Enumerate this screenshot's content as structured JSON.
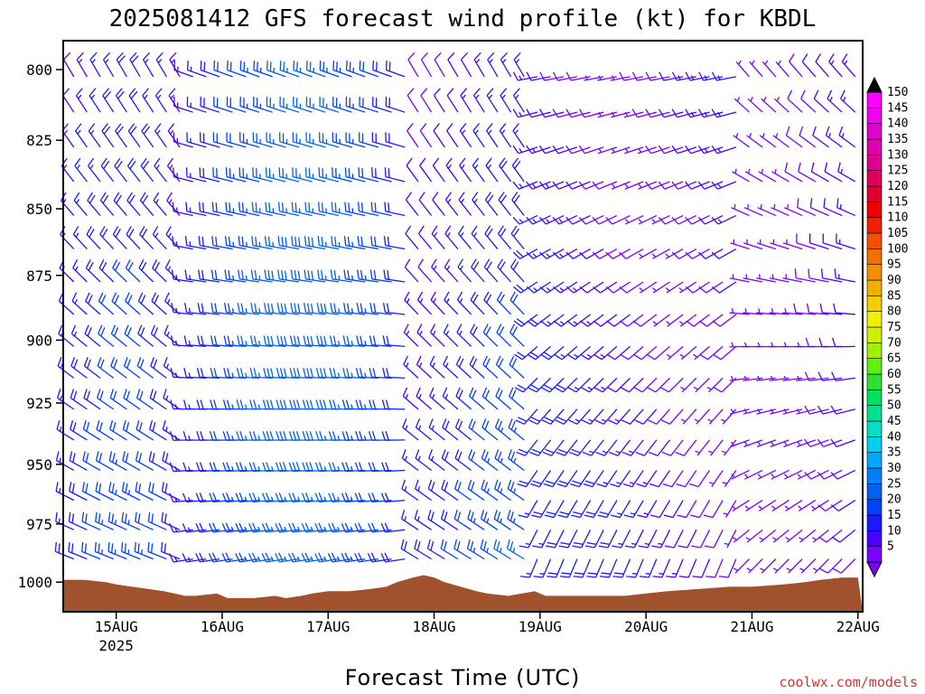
{
  "chart_data": {
    "type": "wind-barb time-height",
    "title": "2025081412 GFS forecast wind profile (kt) for KBDL",
    "xlabel": "Forecast Time (UTC)",
    "ylabel": "",
    "x_ticks": [
      "15AUG",
      "16AUG",
      "17AUG",
      "18AUG",
      "19AUG",
      "20AUG",
      "21AUG",
      "22AUG"
    ],
    "x_year_label": "2025",
    "y_ticks": [
      800,
      825,
      850,
      875,
      900,
      925,
      950,
      975,
      1000
    ],
    "ylim_hPa": [
      1013,
      790
    ],
    "colorbar_kt": [
      5,
      10,
      15,
      20,
      25,
      30,
      35,
      40,
      45,
      50,
      55,
      60,
      65,
      70,
      75,
      80,
      85,
      90,
      95,
      100,
      105,
      110,
      115,
      120,
      125,
      130,
      135,
      140,
      145,
      150
    ],
    "colorbar_colors": [
      "#7a00ff",
      "#4a00ff",
      "#1a1aff",
      "#0040ff",
      "#0060f0",
      "#0080ff",
      "#00a8ff",
      "#00d0f0",
      "#00e0c0",
      "#00e090",
      "#00e060",
      "#30e030",
      "#60f010",
      "#a0f000",
      "#d0f000",
      "#f0f000",
      "#f0d000",
      "#f0b000",
      "#f09000",
      "#f07000",
      "#f05000",
      "#f02000",
      "#f00000",
      "#e00030",
      "#e00060",
      "#e00090",
      "#e000b0",
      "#e000d0",
      "#f000f0",
      "#ff00ff"
    ],
    "barb_time_range_days": [
      14.5,
      22.0
    ],
    "terrain_color": "#a0522d",
    "surface_pressure_hPa": [
      [
        14.5,
        999
      ],
      [
        14.7,
        999
      ],
      [
        14.9,
        1000
      ],
      [
        15.0,
        1001
      ],
      [
        15.15,
        1002
      ],
      [
        15.3,
        1003
      ],
      [
        15.45,
        1004
      ],
      [
        15.55,
        1005
      ],
      [
        15.65,
        1006
      ],
      [
        15.75,
        1006
      ],
      [
        15.95,
        1005
      ],
      [
        16.05,
        1007
      ],
      [
        16.3,
        1007
      ],
      [
        16.5,
        1006
      ],
      [
        16.6,
        1007
      ],
      [
        16.75,
        1006
      ],
      [
        16.85,
        1005
      ],
      [
        17.0,
        1004
      ],
      [
        17.2,
        1004
      ],
      [
        17.4,
        1003
      ],
      [
        17.55,
        1002
      ],
      [
        17.65,
        1000
      ],
      [
        17.8,
        998
      ],
      [
        17.9,
        997
      ],
      [
        18.0,
        998
      ],
      [
        18.1,
        1000
      ],
      [
        18.25,
        1002
      ],
      [
        18.4,
        1004
      ],
      [
        18.5,
        1005
      ],
      [
        18.7,
        1006
      ],
      [
        18.95,
        1004
      ],
      [
        19.05,
        1006
      ],
      [
        19.5,
        1006
      ],
      [
        19.8,
        1006
      ],
      [
        20.0,
        1005
      ],
      [
        20.2,
        1004
      ],
      [
        20.5,
        1003
      ],
      [
        20.8,
        1002
      ],
      [
        21.0,
        1002
      ],
      [
        21.3,
        1001
      ],
      [
        21.5,
        1000
      ],
      [
        21.65,
        999
      ],
      [
        21.85,
        998
      ],
      [
        22.0,
        998
      ]
    ]
  }
}
